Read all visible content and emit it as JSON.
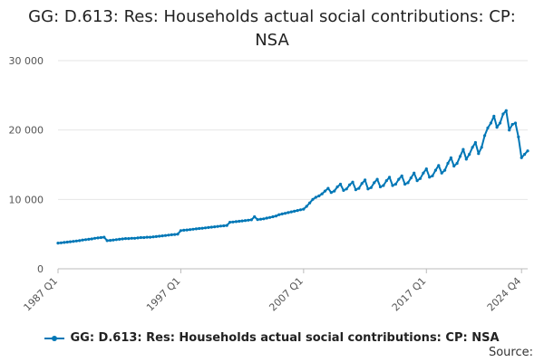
{
  "chart_data": {
    "type": "line",
    "title": "GG: D.613: Res: Households actual social contributions: CP: NSA",
    "xlabel": "",
    "ylabel": "",
    "ylim": [
      0,
      30000
    ],
    "y_ticks": [
      0,
      10000,
      20000,
      30000
    ],
    "y_tick_labels": [
      "0",
      "10 000",
      "20 000",
      "30 000"
    ],
    "x_tick_labels": [
      {
        "label": "1987 Q1",
        "t": 0
      },
      {
        "label": "1997 Q1",
        "t": 40
      },
      {
        "label": "2007 Q1",
        "t": 80
      },
      {
        "label": "2017 Q1",
        "t": 120
      },
      {
        "label": "2024 Q4",
        "t": 151
      }
    ],
    "start_period": "1987 Q1",
    "end_period": "2024 Q4",
    "grid": "horizontal",
    "legend_position": "bottom",
    "series": [
      {
        "name": "GG: D.613: Res: Households actual social contributions: CP: NSA",
        "color": "#0077b6",
        "values": [
          3700,
          3750,
          3800,
          3850,
          3900,
          3950,
          4000,
          4050,
          4150,
          4200,
          4250,
          4300,
          4400,
          4450,
          4500,
          4550,
          4050,
          4100,
          4150,
          4200,
          4250,
          4300,
          4350,
          4350,
          4400,
          4400,
          4450,
          4500,
          4500,
          4550,
          4550,
          4600,
          4650,
          4700,
          4750,
          4800,
          4850,
          4900,
          4950,
          5000,
          5500,
          5550,
          5600,
          5650,
          5700,
          5750,
          5800,
          5850,
          5900,
          5950,
          6000,
          6050,
          6100,
          6150,
          6200,
          6250,
          6700,
          6750,
          6800,
          6850,
          6900,
          6950,
          7000,
          7050,
          7500,
          7100,
          7150,
          7200,
          7300,
          7400,
          7500,
          7600,
          7800,
          7900,
          8000,
          8100,
          8200,
          8300,
          8400,
          8500,
          8600,
          9000,
          9500,
          10000,
          10300,
          10500,
          10800,
          11200,
          11600,
          11000,
          11200,
          11800,
          12200,
          11300,
          11500,
          12100,
          12500,
          11400,
          11600,
          12300,
          12800,
          11500,
          11700,
          12400,
          12900,
          11800,
          12000,
          12700,
          13200,
          12000,
          12200,
          12900,
          13400,
          12200,
          12400,
          13100,
          13800,
          12700,
          13000,
          13800,
          14400,
          13200,
          13400,
          14200,
          14900,
          13800,
          14200,
          15200,
          16000,
          14800,
          15200,
          16200,
          17200,
          15800,
          16500,
          17500,
          18200,
          16600,
          17500,
          19200,
          20300,
          21000,
          22000,
          20400,
          21000,
          22300,
          22800,
          20000,
          20800,
          21000,
          19000,
          16000,
          16500,
          17000
        ]
      }
    ]
  },
  "source_label": "Source:"
}
